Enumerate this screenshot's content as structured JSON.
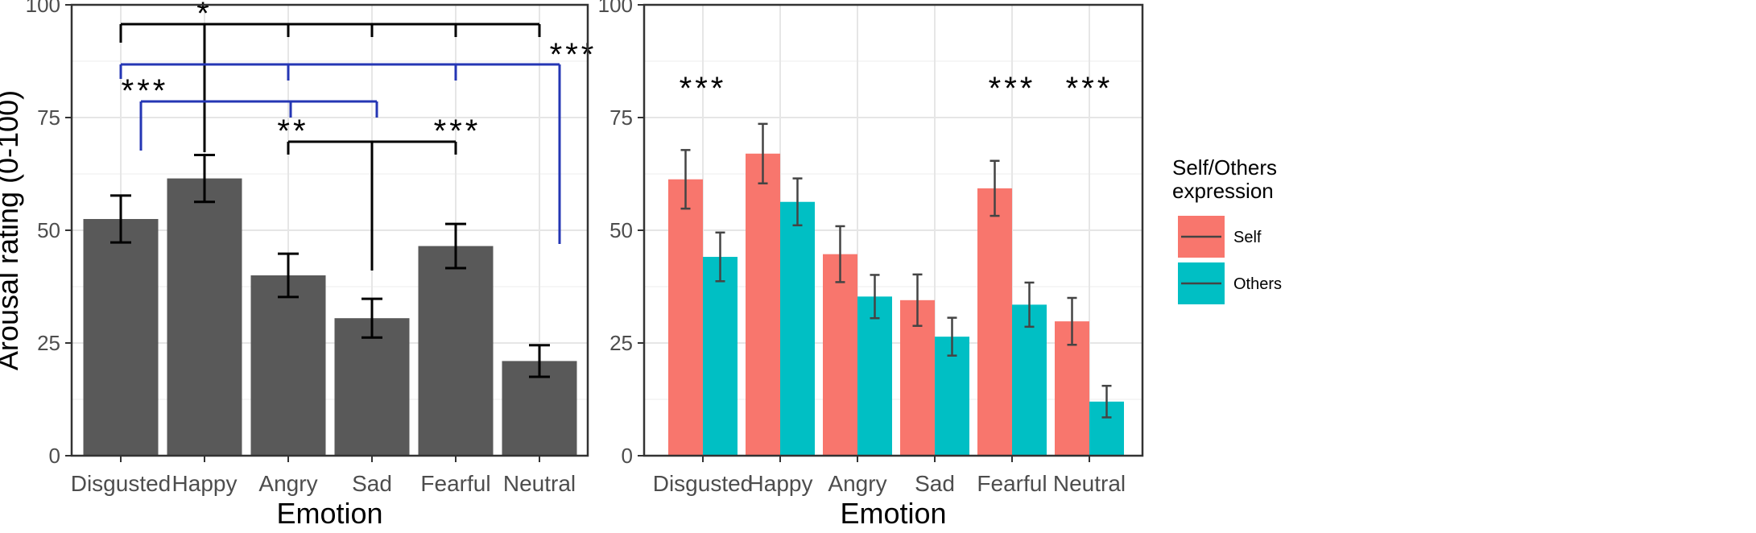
{
  "chart_data": [
    {
      "type": "bar",
      "categories": [
        "Disgusted",
        "Happy",
        "Angry",
        "Sad",
        "Fearful",
        "Neutral"
      ],
      "values": [
        52.5,
        61.5,
        40,
        30.5,
        46.5,
        21
      ],
      "error": [
        5.2,
        5.2,
        4.8,
        4.3,
        4.9,
        3.5
      ],
      "bar_color": "#595959",
      "xlabel": "Emotion",
      "ylabel": "Arousal rating (0-100)",
      "ylim": [
        0,
        100
      ],
      "yticks": [
        0,
        25,
        50,
        75,
        100
      ],
      "grid": true,
      "significance": [
        {
          "label": "*",
          "color": "#000000",
          "from": "Happy",
          "to": [
            "Disgusted",
            "Angry",
            "Sad",
            "Fearful",
            "Neutral"
          ]
        },
        {
          "label": "***",
          "color": "#2436b4",
          "from": "Neutral",
          "to": [
            "Disgusted",
            "Angry",
            "Fearful"
          ]
        },
        {
          "label": "***",
          "color": "#2436b4",
          "from": "Disgusted",
          "to": [
            "Angry",
            "Sad"
          ]
        },
        {
          "label": "**",
          "color": "#000000",
          "from": "Sad",
          "to": [
            "Angry"
          ]
        },
        {
          "label": "***",
          "color": "#000000",
          "from": "Sad",
          "to": [
            "Fearful"
          ]
        }
      ]
    },
    {
      "type": "bar",
      "categories": [
        "Disgusted",
        "Happy",
        "Angry",
        "Sad",
        "Fearful",
        "Neutral"
      ],
      "series": [
        {
          "name": "Self",
          "color": "#f8766d",
          "values": [
            61.3,
            67,
            44.7,
            34.5,
            59.3,
            29.8
          ],
          "error": [
            6.5,
            6.6,
            6.2,
            5.7,
            6.1,
            5.2
          ]
        },
        {
          "name": "Others",
          "color": "#00bfc4",
          "values": [
            44.1,
            56.3,
            35.3,
            26.4,
            33.5,
            12
          ],
          "error": [
            5.4,
            5.2,
            4.8,
            4.2,
            4.9,
            3.5
          ]
        }
      ],
      "significance_labels": [
        "***",
        "",
        "",
        "",
        "***",
        "***"
      ],
      "xlabel": "Emotion",
      "ylabel": "",
      "ylim": [
        0,
        100
      ],
      "yticks": [
        0,
        25,
        50,
        75,
        100
      ],
      "grid": true,
      "legend": {
        "title": [
          "Self/Others",
          "expression"
        ],
        "placement": "right"
      }
    }
  ]
}
